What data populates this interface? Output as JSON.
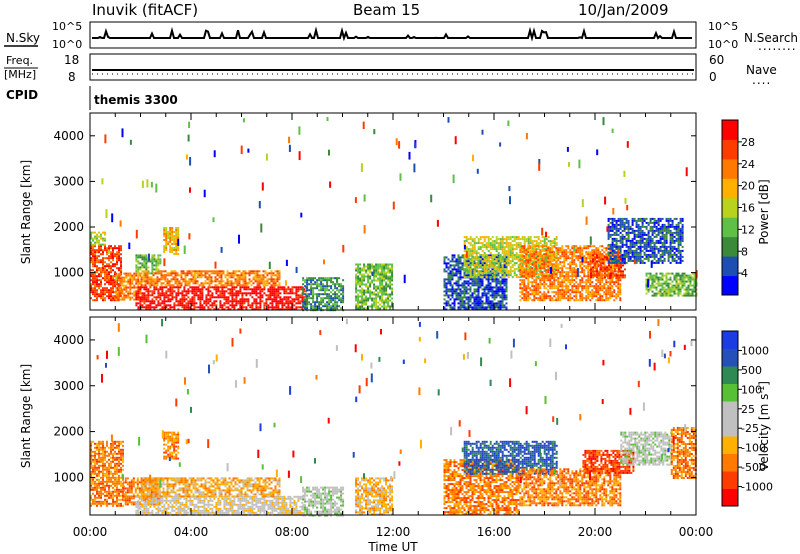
{
  "header": {
    "station": "Inuvik (fitACF)",
    "beam": "Beam 15",
    "date": "10/Jan/2009"
  },
  "noise_panel": {
    "left_label": "N.Sky",
    "right_label": "N.Search",
    "left_ticks": [
      "10^5",
      "10^0"
    ],
    "right_ticks": [
      "10^5",
      "10^0"
    ]
  },
  "freq_panel": {
    "left_label_top": "Freq.",
    "left_label_bottom": "[MHz]",
    "right_label": "Nave",
    "left_ticks": [
      "18",
      "8"
    ],
    "right_ticks": [
      "60",
      "0"
    ]
  },
  "cpid": {
    "label": "CPID",
    "value": "themis 3300"
  },
  "colors": {
    "power_scale": [
      "#0000ff",
      "#1d4fb3",
      "#3a8a3a",
      "#5fbf46",
      "#b8d21e",
      "#ffb000",
      "#ff7800",
      "#ff3c00",
      "#ff0000"
    ],
    "velocity_scale": [
      "#ff0000",
      "#ff3c00",
      "#ff7a00",
      "#ffb000",
      "#c0c0c0",
      "#c0c0c0",
      "#58c034",
      "#2e8a52",
      "#2450b8",
      "#1a3ce0"
    ],
    "line": "#000000"
  },
  "chart_data": [
    {
      "type": "heatmap",
      "name": "power",
      "ylabel": "Slant Range [km]",
      "colorbar_label": "Power [dB]",
      "colorbar_ticks": [
        "4",
        "8",
        "12",
        "16",
        "20",
        "24",
        "28"
      ],
      "x_tick_labels": [
        "00:00",
        "04:00",
        "08:00",
        "12:00",
        "16:00",
        "20:00",
        "00:00"
      ],
      "y_ticks": [
        1000,
        2000,
        3000,
        4000
      ],
      "xlim": [
        0,
        24
      ],
      "ylim": [
        180,
        4500
      ],
      "x_unit": "hours UT",
      "regions": [
        {
          "x": [
            0.0,
            1.2
          ],
          "y": [
            400,
            1600
          ],
          "level": 7
        },
        {
          "x": [
            0.0,
            0.6
          ],
          "y": [
            1600,
            1900
          ],
          "level": 4
        },
        {
          "x": [
            1.0,
            2.0
          ],
          "y": [
            400,
            1000
          ],
          "level": 6
        },
        {
          "x": [
            1.8,
            2.8
          ],
          "y": [
            1000,
            1400
          ],
          "level": 3
        },
        {
          "x": [
            1.8,
            8.6
          ],
          "y": [
            180,
            700
          ],
          "level": 8
        },
        {
          "x": [
            2.0,
            7.5
          ],
          "y": [
            700,
            1050
          ],
          "level": 6
        },
        {
          "x": [
            2.9,
            3.5
          ],
          "y": [
            1400,
            2000
          ],
          "level": 5
        },
        {
          "x": [
            8.4,
            10.0
          ],
          "y": [
            180,
            900
          ],
          "level": 2
        },
        {
          "x": [
            10.5,
            12.0
          ],
          "y": [
            200,
            1200
          ],
          "level": 3
        },
        {
          "x": [
            14.0,
            16.5
          ],
          "y": [
            200,
            1400
          ],
          "level": 1
        },
        {
          "x": [
            14.8,
            18.5
          ],
          "y": [
            900,
            1800
          ],
          "level": 4
        },
        {
          "x": [
            17.0,
            21.0
          ],
          "y": [
            400,
            1600
          ],
          "level": 6
        },
        {
          "x": [
            19.8,
            21.2
          ],
          "y": [
            900,
            1400
          ],
          "level": 7
        },
        {
          "x": [
            20.5,
            23.5
          ],
          "y": [
            1200,
            2200
          ],
          "level": 1
        },
        {
          "x": [
            22.0,
            24.0
          ],
          "y": [
            500,
            1000
          ],
          "level": 3
        }
      ]
    },
    {
      "type": "heatmap",
      "name": "velocity",
      "ylabel": "Slant Range [km]",
      "colorbar_label": "Velocity [m s",
      "colorbar_label_sup": "-1",
      "colorbar_label_end": "]",
      "colorbar_ticks": [
        "-1000",
        "-500",
        "-100",
        "-25",
        "25",
        "100",
        "500",
        "1000"
      ],
      "x_tick_labels": [
        "00:00",
        "04:00",
        "08:00",
        "12:00",
        "16:00",
        "20:00",
        "00:00"
      ],
      "xlabel": "Time UT",
      "y_ticks": [
        1000,
        2000,
        3000,
        4000
      ],
      "xlim": [
        0,
        24
      ],
      "ylim": [
        180,
        4500
      ],
      "x_unit": "hours UT",
      "regions": [
        {
          "x": [
            0.0,
            1.3
          ],
          "y": [
            400,
            1800
          ],
          "level": 2
        },
        {
          "x": [
            1.3,
            2.8
          ],
          "y": [
            400,
            1000
          ],
          "level": 2
        },
        {
          "x": [
            1.8,
            8.5
          ],
          "y": [
            180,
            600
          ],
          "level": 4
        },
        {
          "x": [
            2.0,
            7.5
          ],
          "y": [
            600,
            1000
          ],
          "level": 3
        },
        {
          "x": [
            2.9,
            3.5
          ],
          "y": [
            1400,
            2000
          ],
          "level": 2
        },
        {
          "x": [
            8.4,
            10.0
          ],
          "y": [
            180,
            800
          ],
          "level": 5
        },
        {
          "x": [
            10.5,
            12.0
          ],
          "y": [
            200,
            1000
          ],
          "level": 3
        },
        {
          "x": [
            14.0,
            17.0
          ],
          "y": [
            200,
            1400
          ],
          "level": 2
        },
        {
          "x": [
            14.8,
            18.5
          ],
          "y": [
            1100,
            1800
          ],
          "level": 8
        },
        {
          "x": [
            17.0,
            21.0
          ],
          "y": [
            400,
            1200
          ],
          "level": 2
        },
        {
          "x": [
            19.5,
            21.5
          ],
          "y": [
            1100,
            1600
          ],
          "level": 1
        },
        {
          "x": [
            21.0,
            23.0
          ],
          "y": [
            1300,
            2000
          ],
          "level": 5
        },
        {
          "x": [
            23.0,
            24.0
          ],
          "y": [
            1000,
            2100
          ],
          "level": 2
        }
      ]
    }
  ]
}
